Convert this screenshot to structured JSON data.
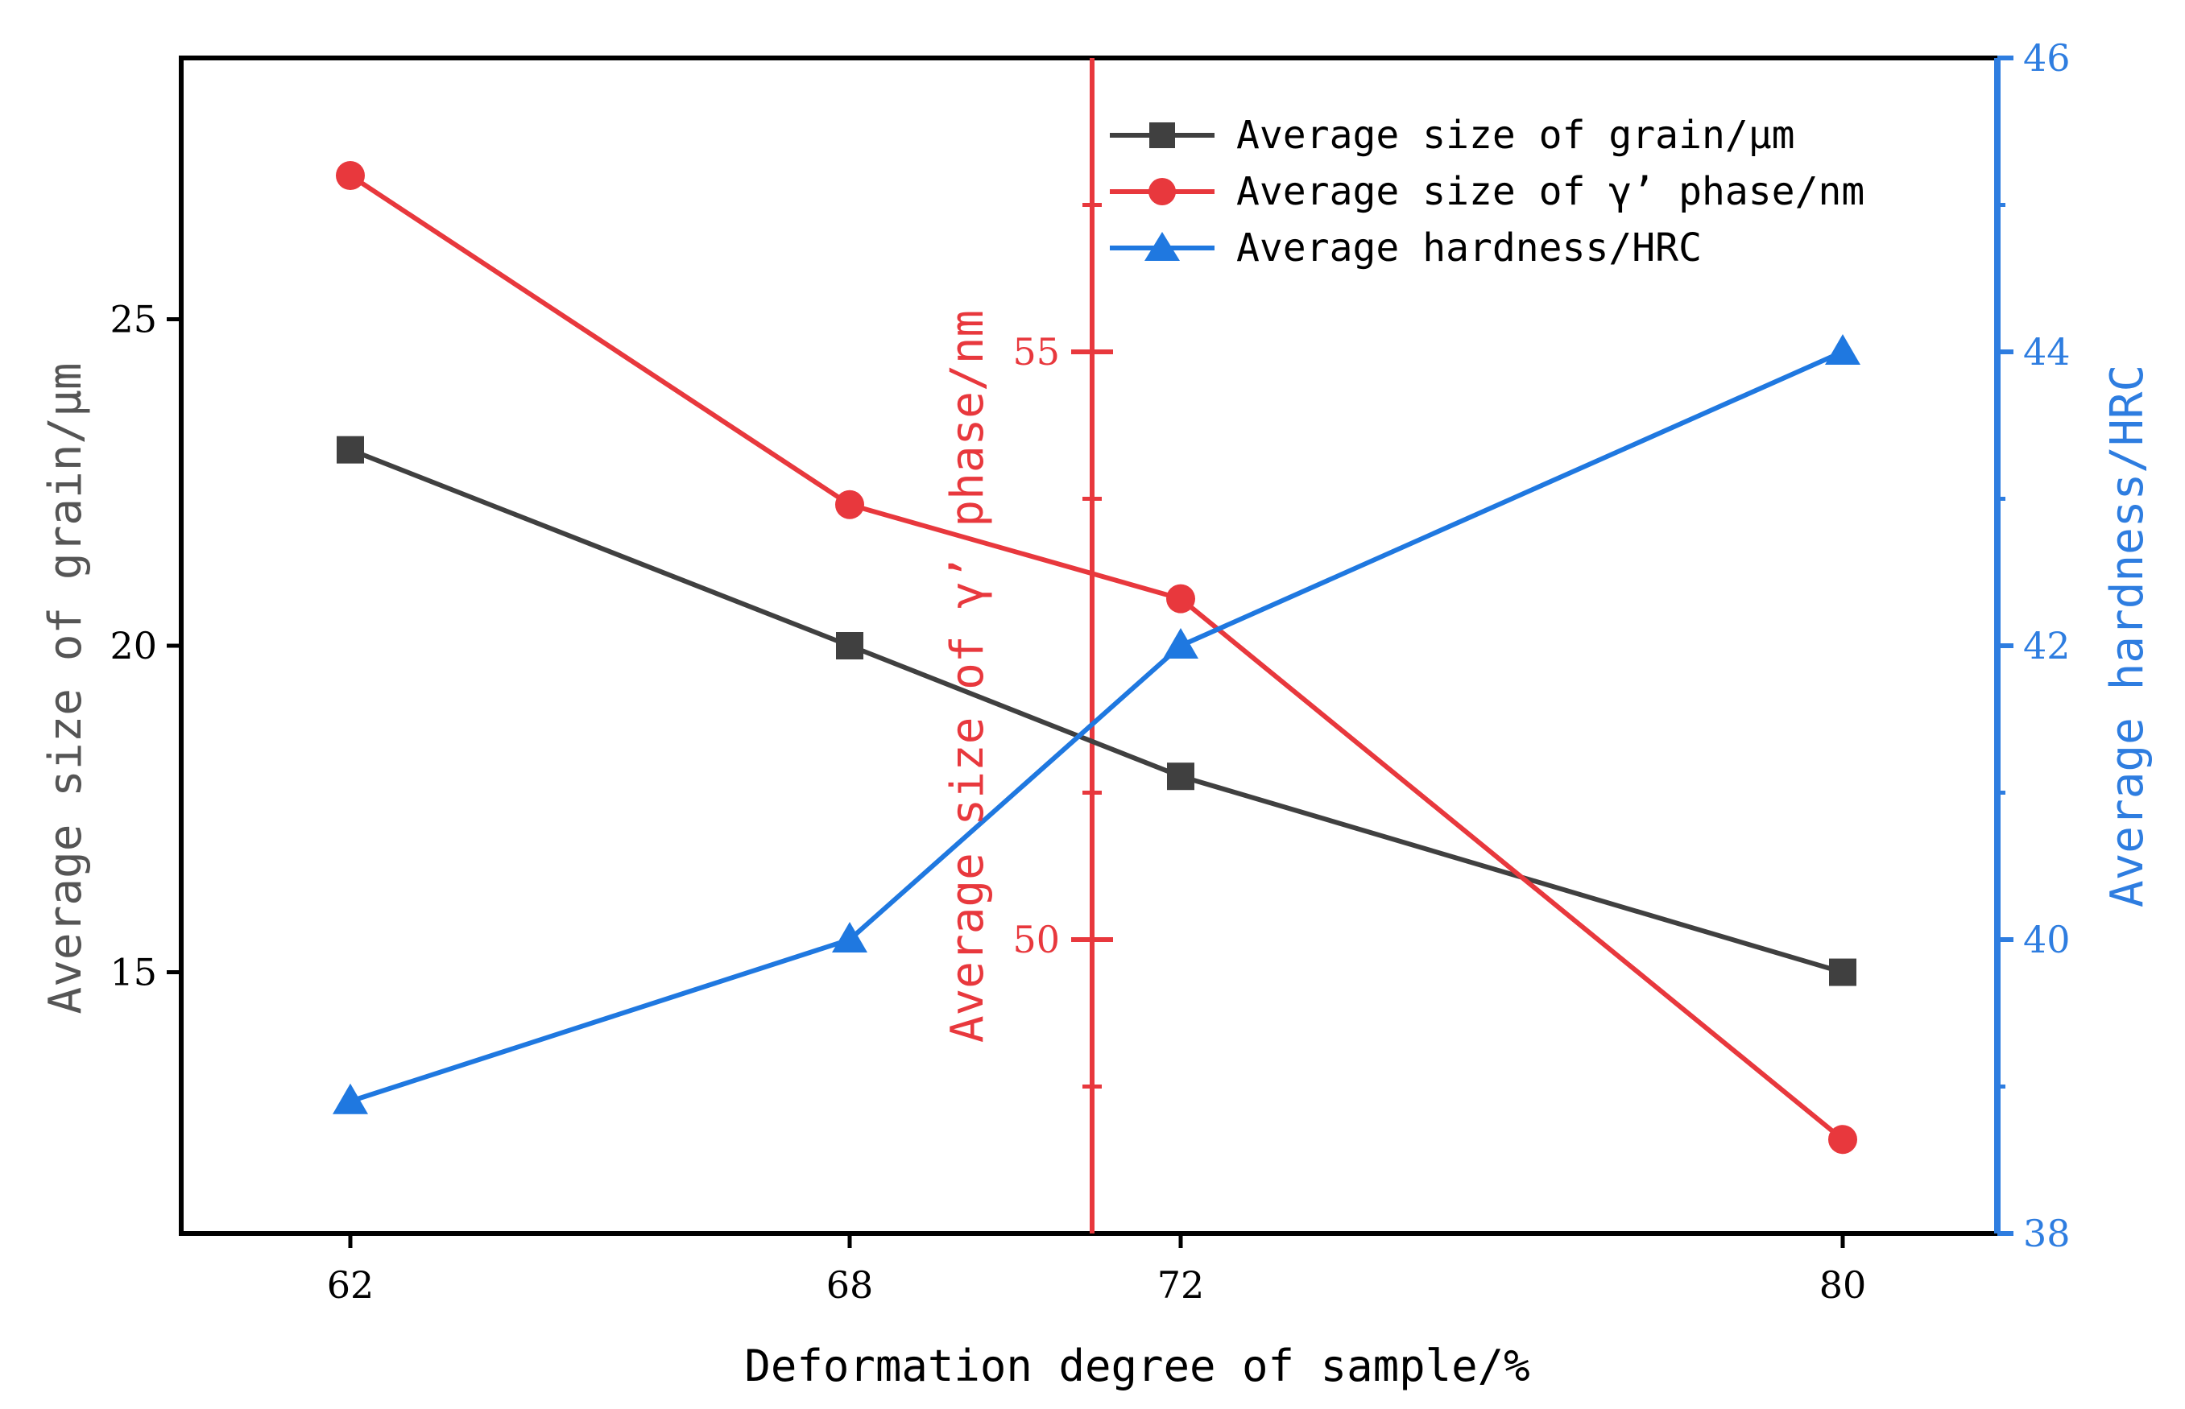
{
  "chart_data": {
    "type": "line",
    "x": [
      62,
      68,
      72,
      80
    ],
    "xlabel": "Deformation degree of sample/%",
    "x_ticks": [
      "62",
      "68",
      "72",
      "80"
    ],
    "axes": {
      "left": {
        "label": "Average size of grain/μm",
        "min": 11,
        "max": 29,
        "ticks": [
          "15",
          "20",
          "25"
        ],
        "tick_values": [
          15,
          20,
          25
        ],
        "color": "#555555"
      },
      "mid": {
        "label": "Average size of γ’ phase/nm",
        "min": 47.5,
        "max": 57.5,
        "ticks": [
          "50",
          "55"
        ],
        "tick_values": [
          50,
          55
        ],
        "color": "#e8383d"
      },
      "right": {
        "label": "Average hardness/HRC",
        "min": 38,
        "max": 46,
        "ticks": [
          "38",
          "40",
          "42",
          "44",
          "46"
        ],
        "tick_values": [
          38,
          40,
          42,
          44,
          46
        ],
        "color": "#2e7de0"
      }
    },
    "series": [
      {
        "name": "Average size of grain/μm",
        "axis": "left",
        "marker": "square",
        "color": "#404040",
        "values": [
          23,
          20,
          18,
          15
        ]
      },
      {
        "name": "Average size of γ’ phase/nm",
        "axis": "mid",
        "marker": "circle",
        "color": "#e8383d",
        "values": [
          56.5,
          53.7,
          52.9,
          48.3
        ]
      },
      {
        "name": "Average hardness/HRC",
        "axis": "right",
        "marker": "triangle",
        "color": "#1f78e0",
        "values": [
          38.9,
          40.0,
          42.0,
          44.0
        ]
      }
    ],
    "legend_position": "top-right"
  }
}
